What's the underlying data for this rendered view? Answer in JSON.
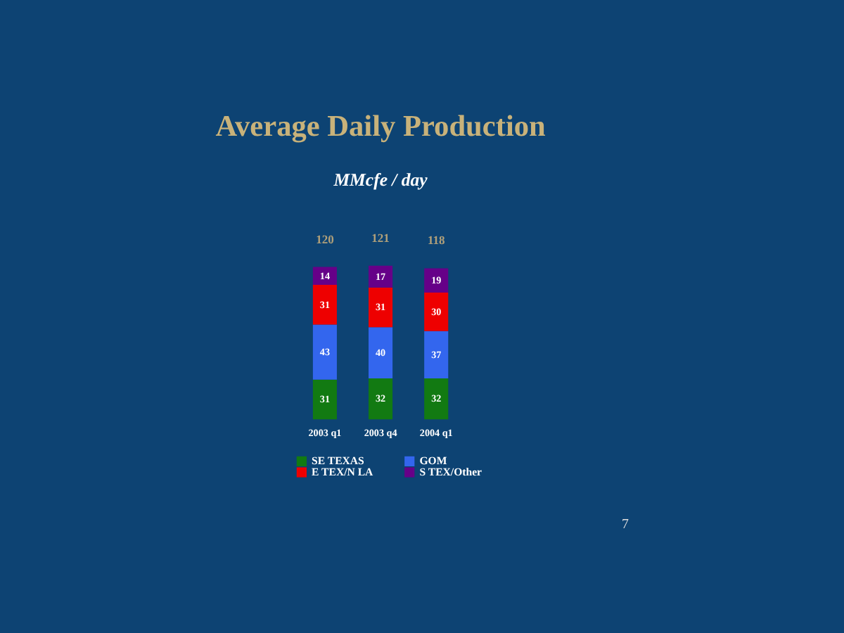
{
  "chart_data": {
    "type": "bar",
    "title": "Average Daily Production",
    "subtitle": "MMcfe / day",
    "categories": [
      "2003 q1",
      "2003 q4",
      "2004 q1"
    ],
    "stacked": true,
    "data_labels": true,
    "legend": "bottom",
    "grid": false,
    "series": [
      {
        "name": "SE TEXAS",
        "color": "#127a12",
        "values": [
          31,
          32,
          32
        ]
      },
      {
        "name": "GOM",
        "color": "#3366ee",
        "values": [
          43,
          40,
          37
        ]
      },
      {
        "name": "E TEX/N LA",
        "color": "#ee0000",
        "values": [
          31,
          31,
          30
        ]
      },
      {
        "name": "S TEX/Other",
        "color": "#660088",
        "values": [
          14,
          17,
          19
        ]
      }
    ],
    "totals": [
      "120",
      "121",
      "118"
    ],
    "annotations": [
      "7"
    ]
  }
}
